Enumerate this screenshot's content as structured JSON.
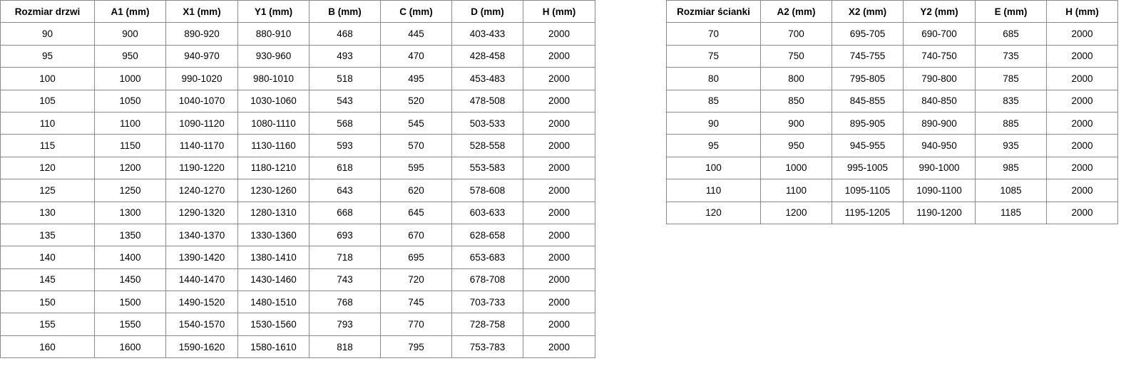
{
  "door_table": {
    "headers": [
      "Rozmiar drzwi",
      "A1 (mm)",
      "X1 (mm)",
      "Y1 (mm)",
      "B (mm)",
      "C (mm)",
      "D (mm)",
      "H (mm)"
    ],
    "rows": [
      [
        "90",
        "900",
        "890-920",
        "880-910",
        "468",
        "445",
        "403-433",
        "2000"
      ],
      [
        "95",
        "950",
        "940-970",
        "930-960",
        "493",
        "470",
        "428-458",
        "2000"
      ],
      [
        "100",
        "1000",
        "990-1020",
        "980-1010",
        "518",
        "495",
        "453-483",
        "2000"
      ],
      [
        "105",
        "1050",
        "1040-1070",
        "1030-1060",
        "543",
        "520",
        "478-508",
        "2000"
      ],
      [
        "110",
        "1100",
        "1090-1120",
        "1080-1110",
        "568",
        "545",
        "503-533",
        "2000"
      ],
      [
        "115",
        "1150",
        "1140-1170",
        "1130-1160",
        "593",
        "570",
        "528-558",
        "2000"
      ],
      [
        "120",
        "1200",
        "1190-1220",
        "1180-1210",
        "618",
        "595",
        "553-583",
        "2000"
      ],
      [
        "125",
        "1250",
        "1240-1270",
        "1230-1260",
        "643",
        "620",
        "578-608",
        "2000"
      ],
      [
        "130",
        "1300",
        "1290-1320",
        "1280-1310",
        "668",
        "645",
        "603-633",
        "2000"
      ],
      [
        "135",
        "1350",
        "1340-1370",
        "1330-1360",
        "693",
        "670",
        "628-658",
        "2000"
      ],
      [
        "140",
        "1400",
        "1390-1420",
        "1380-1410",
        "718",
        "695",
        "653-683",
        "2000"
      ],
      [
        "145",
        "1450",
        "1440-1470",
        "1430-1460",
        "743",
        "720",
        "678-708",
        "2000"
      ],
      [
        "150",
        "1500",
        "1490-1520",
        "1480-1510",
        "768",
        "745",
        "703-733",
        "2000"
      ],
      [
        "155",
        "1550",
        "1540-1570",
        "1530-1560",
        "793",
        "770",
        "728-758",
        "2000"
      ],
      [
        "160",
        "1600",
        "1590-1620",
        "1580-1610",
        "818",
        "795",
        "753-783",
        "2000"
      ]
    ]
  },
  "wall_table": {
    "headers": [
      "Rozmiar ścianki",
      "A2 (mm)",
      "X2 (mm)",
      "Y2 (mm)",
      "E (mm)",
      "H (mm)"
    ],
    "rows": [
      [
        "70",
        "700",
        "695-705",
        "690-700",
        "685",
        "2000"
      ],
      [
        "75",
        "750",
        "745-755",
        "740-750",
        "735",
        "2000"
      ],
      [
        "80",
        "800",
        "795-805",
        "790-800",
        "785",
        "2000"
      ],
      [
        "85",
        "850",
        "845-855",
        "840-850",
        "835",
        "2000"
      ],
      [
        "90",
        "900",
        "895-905",
        "890-900",
        "885",
        "2000"
      ],
      [
        "95",
        "950",
        "945-955",
        "940-950",
        "935",
        "2000"
      ],
      [
        "100",
        "1000",
        "995-1005",
        "990-1000",
        "985",
        "2000"
      ],
      [
        "110",
        "1100",
        "1095-1105",
        "1090-1100",
        "1085",
        "2000"
      ],
      [
        "120",
        "1200",
        "1195-1205",
        "1190-1200",
        "1185",
        "2000"
      ]
    ]
  }
}
